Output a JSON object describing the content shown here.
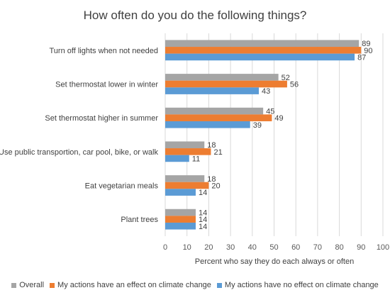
{
  "chart_data": {
    "type": "bar",
    "orientation": "horizontal",
    "title": "How often do you do the following things?",
    "xlabel": "Percent who say they do each always or often",
    "ylabel": "",
    "xlim": [
      0,
      100
    ],
    "xticks": [
      0,
      10,
      20,
      30,
      40,
      50,
      60,
      70,
      80,
      90,
      100
    ],
    "grid": "vertical",
    "legend": "bottom",
    "categories": [
      "Turn off lights when not needed",
      "Set thermostat lower in winter",
      "Set thermostat higher in summer",
      "Use public transportion, car pool, bike, or walk",
      "Eat vegetarian meals",
      "Plant trees"
    ],
    "series": [
      {
        "name": "Overall",
        "color": "#a5a5a5",
        "values": [
          89,
          52,
          45,
          18,
          18,
          14
        ]
      },
      {
        "name": "My actions have an effect on climate change",
        "color": "#ed7d31",
        "values": [
          90,
          56,
          49,
          21,
          20,
          14
        ]
      },
      {
        "name": "My actions have no effect on climate change",
        "color": "#5b9bd5",
        "values": [
          87,
          43,
          39,
          11,
          14,
          14
        ]
      }
    ]
  }
}
